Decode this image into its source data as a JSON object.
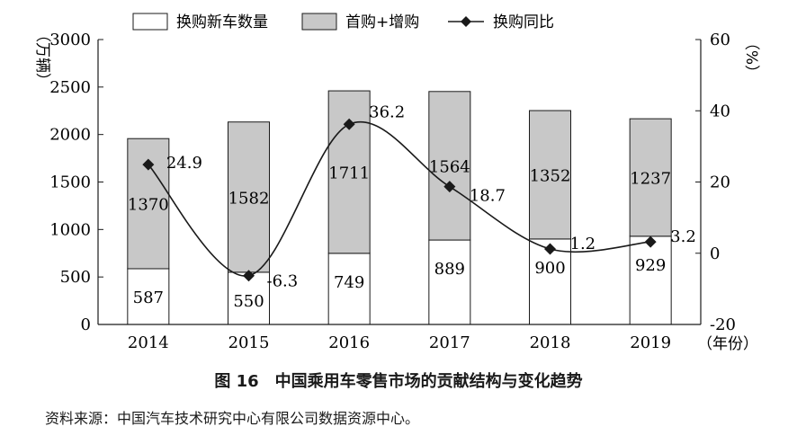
{
  "chart_data": {
    "type": "bar",
    "stacked": true,
    "categories": [
      "2014",
      "2015",
      "2016",
      "2017",
      "2018",
      "2019"
    ],
    "series": [
      {
        "name": "换购新车数量",
        "kind": "bar",
        "color": "#ffffff",
        "values": [
          587,
          550,
          749,
          889,
          900,
          929
        ],
        "labels": [
          "587",
          "550",
          "749",
          "889",
          "900",
          "929"
        ]
      },
      {
        "name": "首购+增购",
        "kind": "bar",
        "color": "#c8c8c8",
        "values": [
          1370,
          1582,
          1711,
          1564,
          1352,
          1237
        ],
        "labels": [
          "1370",
          "1582",
          "1711",
          "1564",
          "1352",
          "1237"
        ]
      },
      {
        "name": "换购同比",
        "kind": "line",
        "axis": "right",
        "color": "#1a1a1a",
        "values": [
          24.9,
          -6.3,
          36.2,
          18.7,
          1.2,
          3.2
        ],
        "labels": [
          "24.9",
          "-6.3",
          "36.2",
          "18.7",
          "1.2",
          "3.2"
        ]
      }
    ],
    "ylim": [
      0,
      3000
    ],
    "y_ticks": [
      "0",
      "500",
      "1000",
      "1500",
      "2000",
      "2500",
      "3000"
    ],
    "y2lim": [
      -20,
      60
    ],
    "y2_ticks": [
      "-20",
      "0",
      "20",
      "40",
      "60"
    ],
    "ylabel": "（万辆）",
    "y2label": "（%）",
    "xlabel": "（年份）",
    "legend_position": "top",
    "grid": false
  },
  "figure": {
    "number": "图 16",
    "title": "中国乘用车零售市场的贡献结构与变化趋势"
  },
  "source_note": "资料来源：中国汽车技术研究中心有限公司数据资源中心。"
}
